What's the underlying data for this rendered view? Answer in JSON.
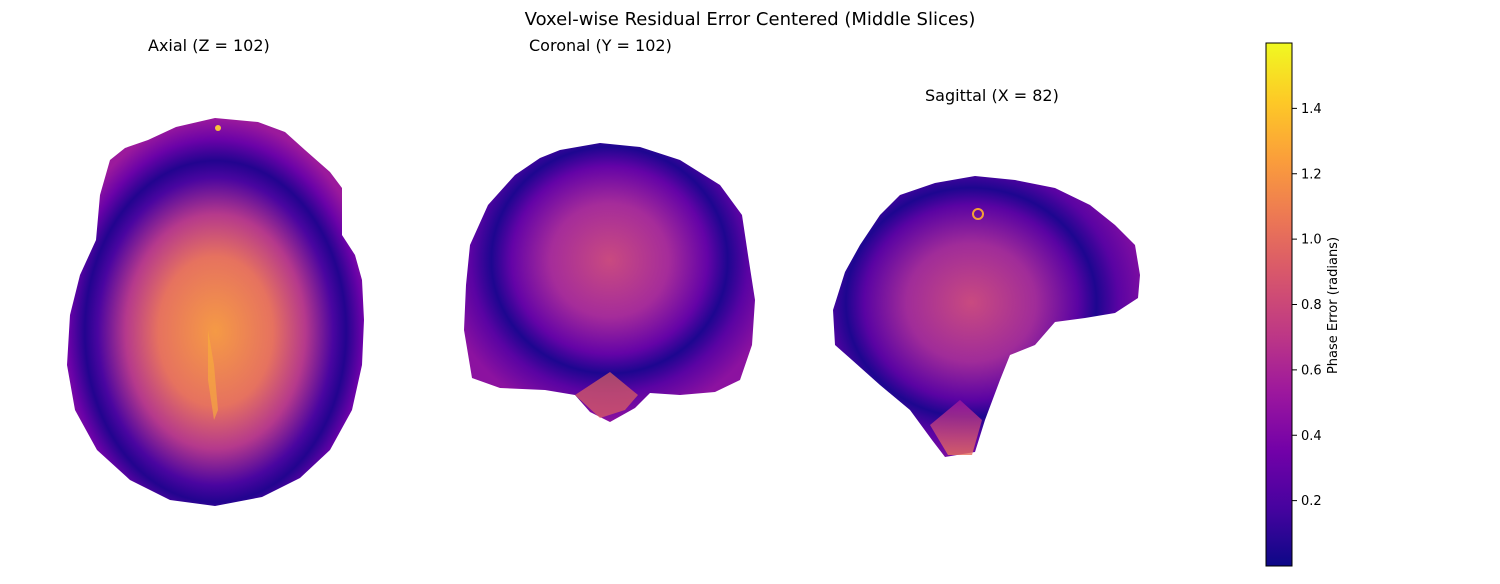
{
  "figure": {
    "title": "Voxel-wise Residual Error Centered (Middle Slices)",
    "panels": [
      {
        "id": "axial",
        "title": "Axial (Z = 102)"
      },
      {
        "id": "coronal",
        "title": "Coronal (Y = 102)"
      },
      {
        "id": "sagittal",
        "title": "Sagittal (X = 82)"
      }
    ]
  },
  "colorbar": {
    "label": "Phase Error (radians)",
    "colormap": "plasma",
    "range": [
      0.0,
      1.6
    ],
    "ticks": [
      "0.2",
      "0.4",
      "0.6",
      "0.8",
      "1.0",
      "1.2",
      "1.4"
    ],
    "colors": [
      "#0d0887",
      "#46039f",
      "#7201a8",
      "#9c179e",
      "#bd3786",
      "#d8576b",
      "#ed7953",
      "#fb9f3a",
      "#fdca26",
      "#f0f921"
    ]
  }
}
